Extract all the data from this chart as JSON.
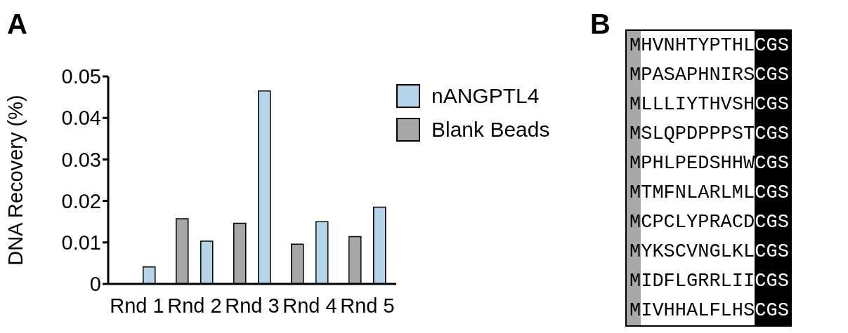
{
  "chart_data": [
    {
      "type": "bar",
      "title": "A",
      "ylabel": "DNA Recovery (%)",
      "categories": [
        "Rnd 1",
        "Rnd 2",
        "Rnd 3",
        "Rnd 4",
        "Rnd 5"
      ],
      "series": [
        {
          "name": "Blank Beads",
          "color": "#a6a6a6",
          "values": [
            0,
            0.0157,
            0.0146,
            0.0096,
            0.0114
          ]
        },
        {
          "name": "nANGPTL4",
          "color": "#b4d4ea",
          "values": [
            0.0041,
            0.0103,
            0.0465,
            0.015,
            0.0185
          ]
        }
      ],
      "ylim": [
        0,
        0.05
      ],
      "yticks": [
        0,
        0.01,
        0.02,
        0.03,
        0.04,
        0.05
      ],
      "grid": false,
      "legend": "top right"
    },
    {
      "type": "other",
      "title": "B",
      "annotations": [
        "MHVNHTYPTHLCGS",
        "MPASAPHNIRSCGS",
        "MLLLIYTHVSHCGS",
        "MSLQPDPPPSTCGS",
        "MPHLPEDSHHWCGS",
        "MTMFNLARLMLCGS",
        "MCPCLYPRACDCGS",
        "MYKSCVNGLKLCGS",
        "MIDFLGRRLIICGS",
        "MIVHHALFLHSCGS"
      ]
    }
  ]
}
